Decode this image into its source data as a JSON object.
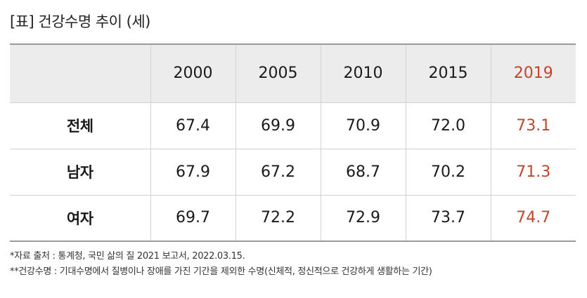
{
  "title": "[표] 건강수명 추이 (세)",
  "table": {
    "years": [
      "2000",
      "2005",
      "2010",
      "2015",
      "2019"
    ],
    "rows": [
      {
        "label": "전체",
        "values": [
          "67.4",
          "69.9",
          "70.9",
          "72.0",
          "73.1"
        ]
      },
      {
        "label": "남자",
        "values": [
          "67.9",
          "67.2",
          "68.7",
          "70.2",
          "71.3"
        ]
      },
      {
        "label": "여자",
        "values": [
          "69.7",
          "72.2",
          "72.9",
          "73.7",
          "74.7"
        ]
      }
    ]
  },
  "notes": [
    "*자료 출처 : 통계청, 국민 삶의 질 2021 보고서, 2022.03.15.",
    "**건강수명 : 기대수명에서 질병이나 장애를 가진 기간을 제외한 수명(신체적, 정신적으로 건강하게 생활하는 기간)"
  ],
  "colors": {
    "highlight": "#c0462a",
    "header_bg": "#ececec"
  }
}
